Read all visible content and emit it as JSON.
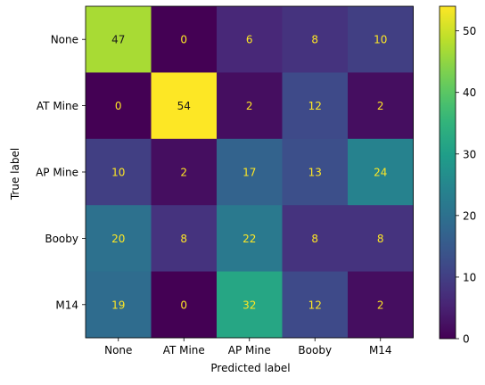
{
  "chart_data": {
    "type": "heatmap",
    "title": "",
    "xlabel": "Predicted label",
    "ylabel": "True label",
    "x_categories": [
      "None",
      "AT Mine",
      "AP Mine",
      "Booby",
      "M14"
    ],
    "y_categories": [
      "None",
      "AT Mine",
      "AP Mine",
      "Booby",
      "M14"
    ],
    "values": [
      [
        47,
        0,
        6,
        8,
        10
      ],
      [
        0,
        54,
        2,
        12,
        2
      ],
      [
        10,
        2,
        17,
        13,
        24
      ],
      [
        20,
        8,
        22,
        8,
        8
      ],
      [
        19,
        0,
        32,
        12,
        2
      ]
    ],
    "colormap": "viridis",
    "vmin": 0,
    "vmax": 54,
    "colorbar_ticks": [
      0,
      10,
      20,
      30,
      40,
      50
    ],
    "text_color_dark_cell": "#fde725",
    "text_color_light_cell": "#1a1a1a"
  }
}
